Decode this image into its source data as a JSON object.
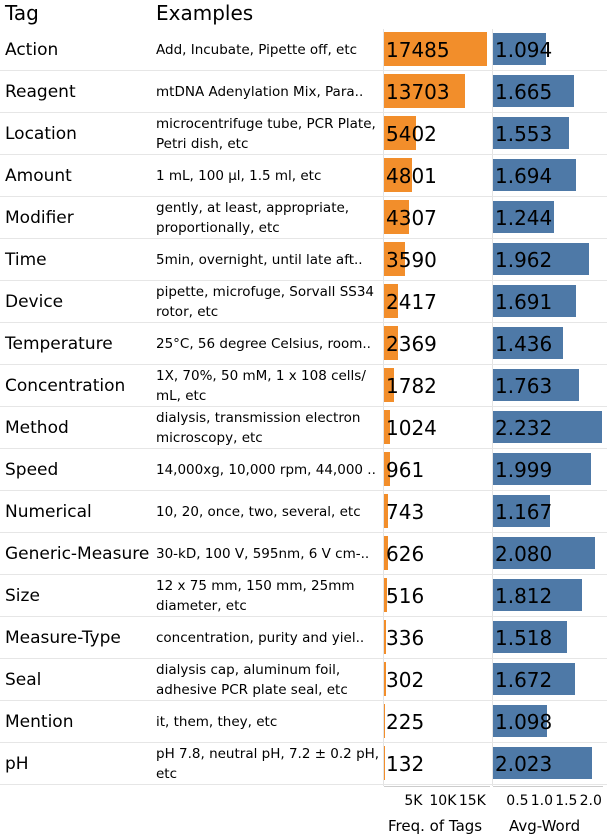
{
  "header": {
    "tag": "Tag",
    "examples": "Examples"
  },
  "chart_data": {
    "type": "bar",
    "categories": [
      "Action",
      "Reagent",
      "Location",
      "Amount",
      "Modifier",
      "Time",
      "Device",
      "Temperature",
      "Concentration",
      "Method",
      "Speed",
      "Numerical",
      "Generic-Measure",
      "Size",
      "Measure-Type",
      "Seal",
      "Mention",
      "pH"
    ],
    "examples": [
      "Add, Incubate, Pipette off,  etc",
      "mtDNA Adenylation Mix, Para..",
      "microcentrifuge tube, PCR Plate, Petri dish, etc",
      "1 mL, 100 µl, 1.5 ml, etc",
      "gently, at least, appropriate, proportionally, etc",
      "5min, overnight, until late aft..",
      "pipette, microfuge, Sorvall SS34 rotor, etc",
      "25°C, 56 degree Celsius, room..",
      "1X, 70%, 50 mM, 1 x 108 cells/ mL, etc",
      "dialysis, transmission electron microscopy, etc",
      "14,000xg, 10,000 rpm, 44,000 ..",
      "10, 20, once, two, several, etc",
      "30-kD, 100 V, 595nm, 6 V cm-..",
      "12 x 75 mm, 150 mm, 25mm diameter, etc",
      "concentration, purity and yiel..",
      "dialysis cap, aluminum foil, adhesive PCR plate seal, etc",
      "it, them, they, etc",
      "pH 7.8, neutral pH, 7.2 ± 0.2 pH, etc"
    ],
    "series": [
      {
        "name": "Freq. of Tags",
        "color": "#f28e2b",
        "values": [
          17485,
          13703,
          5402,
          4801,
          4307,
          3590,
          2417,
          2369,
          1782,
          1024,
          961,
          743,
          626,
          516,
          336,
          302,
          225,
          132
        ],
        "labels": [
          "17485",
          "13703",
          "5402",
          "4801",
          "4307",
          "3590",
          "2417",
          "2369",
          "1782",
          "1024",
          "961",
          "743",
          "626",
          "516",
          "336",
          "302",
          "225",
          "132"
        ],
        "xlim": [
          0,
          18000
        ],
        "ticks": [
          "5K",
          "10K",
          "15K"
        ],
        "tick_values": [
          5000,
          10000,
          15000
        ]
      },
      {
        "name": "Avg-Word",
        "color": "#4e79a7",
        "values": [
          1.094,
          1.665,
          1.553,
          1.694,
          1.244,
          1.962,
          1.691,
          1.436,
          1.763,
          2.232,
          1.999,
          1.167,
          2.08,
          1.812,
          1.518,
          1.672,
          1.098,
          2.023
        ],
        "labels": [
          "1.094",
          "1.665",
          "1.553",
          "1.694",
          "1.244",
          "1.962",
          "1.691",
          "1.436",
          "1.763",
          "2.232",
          "1.999",
          "1.167",
          "2.080",
          "1.812",
          "1.518",
          "1.672",
          "1.098",
          "2.023"
        ],
        "xlim": [
          0,
          2.25
        ],
        "ticks": [
          "0.5",
          "1.0",
          "1.5",
          "2.0"
        ],
        "tick_values": [
          0.5,
          1.0,
          1.5,
          2.0
        ]
      }
    ]
  }
}
